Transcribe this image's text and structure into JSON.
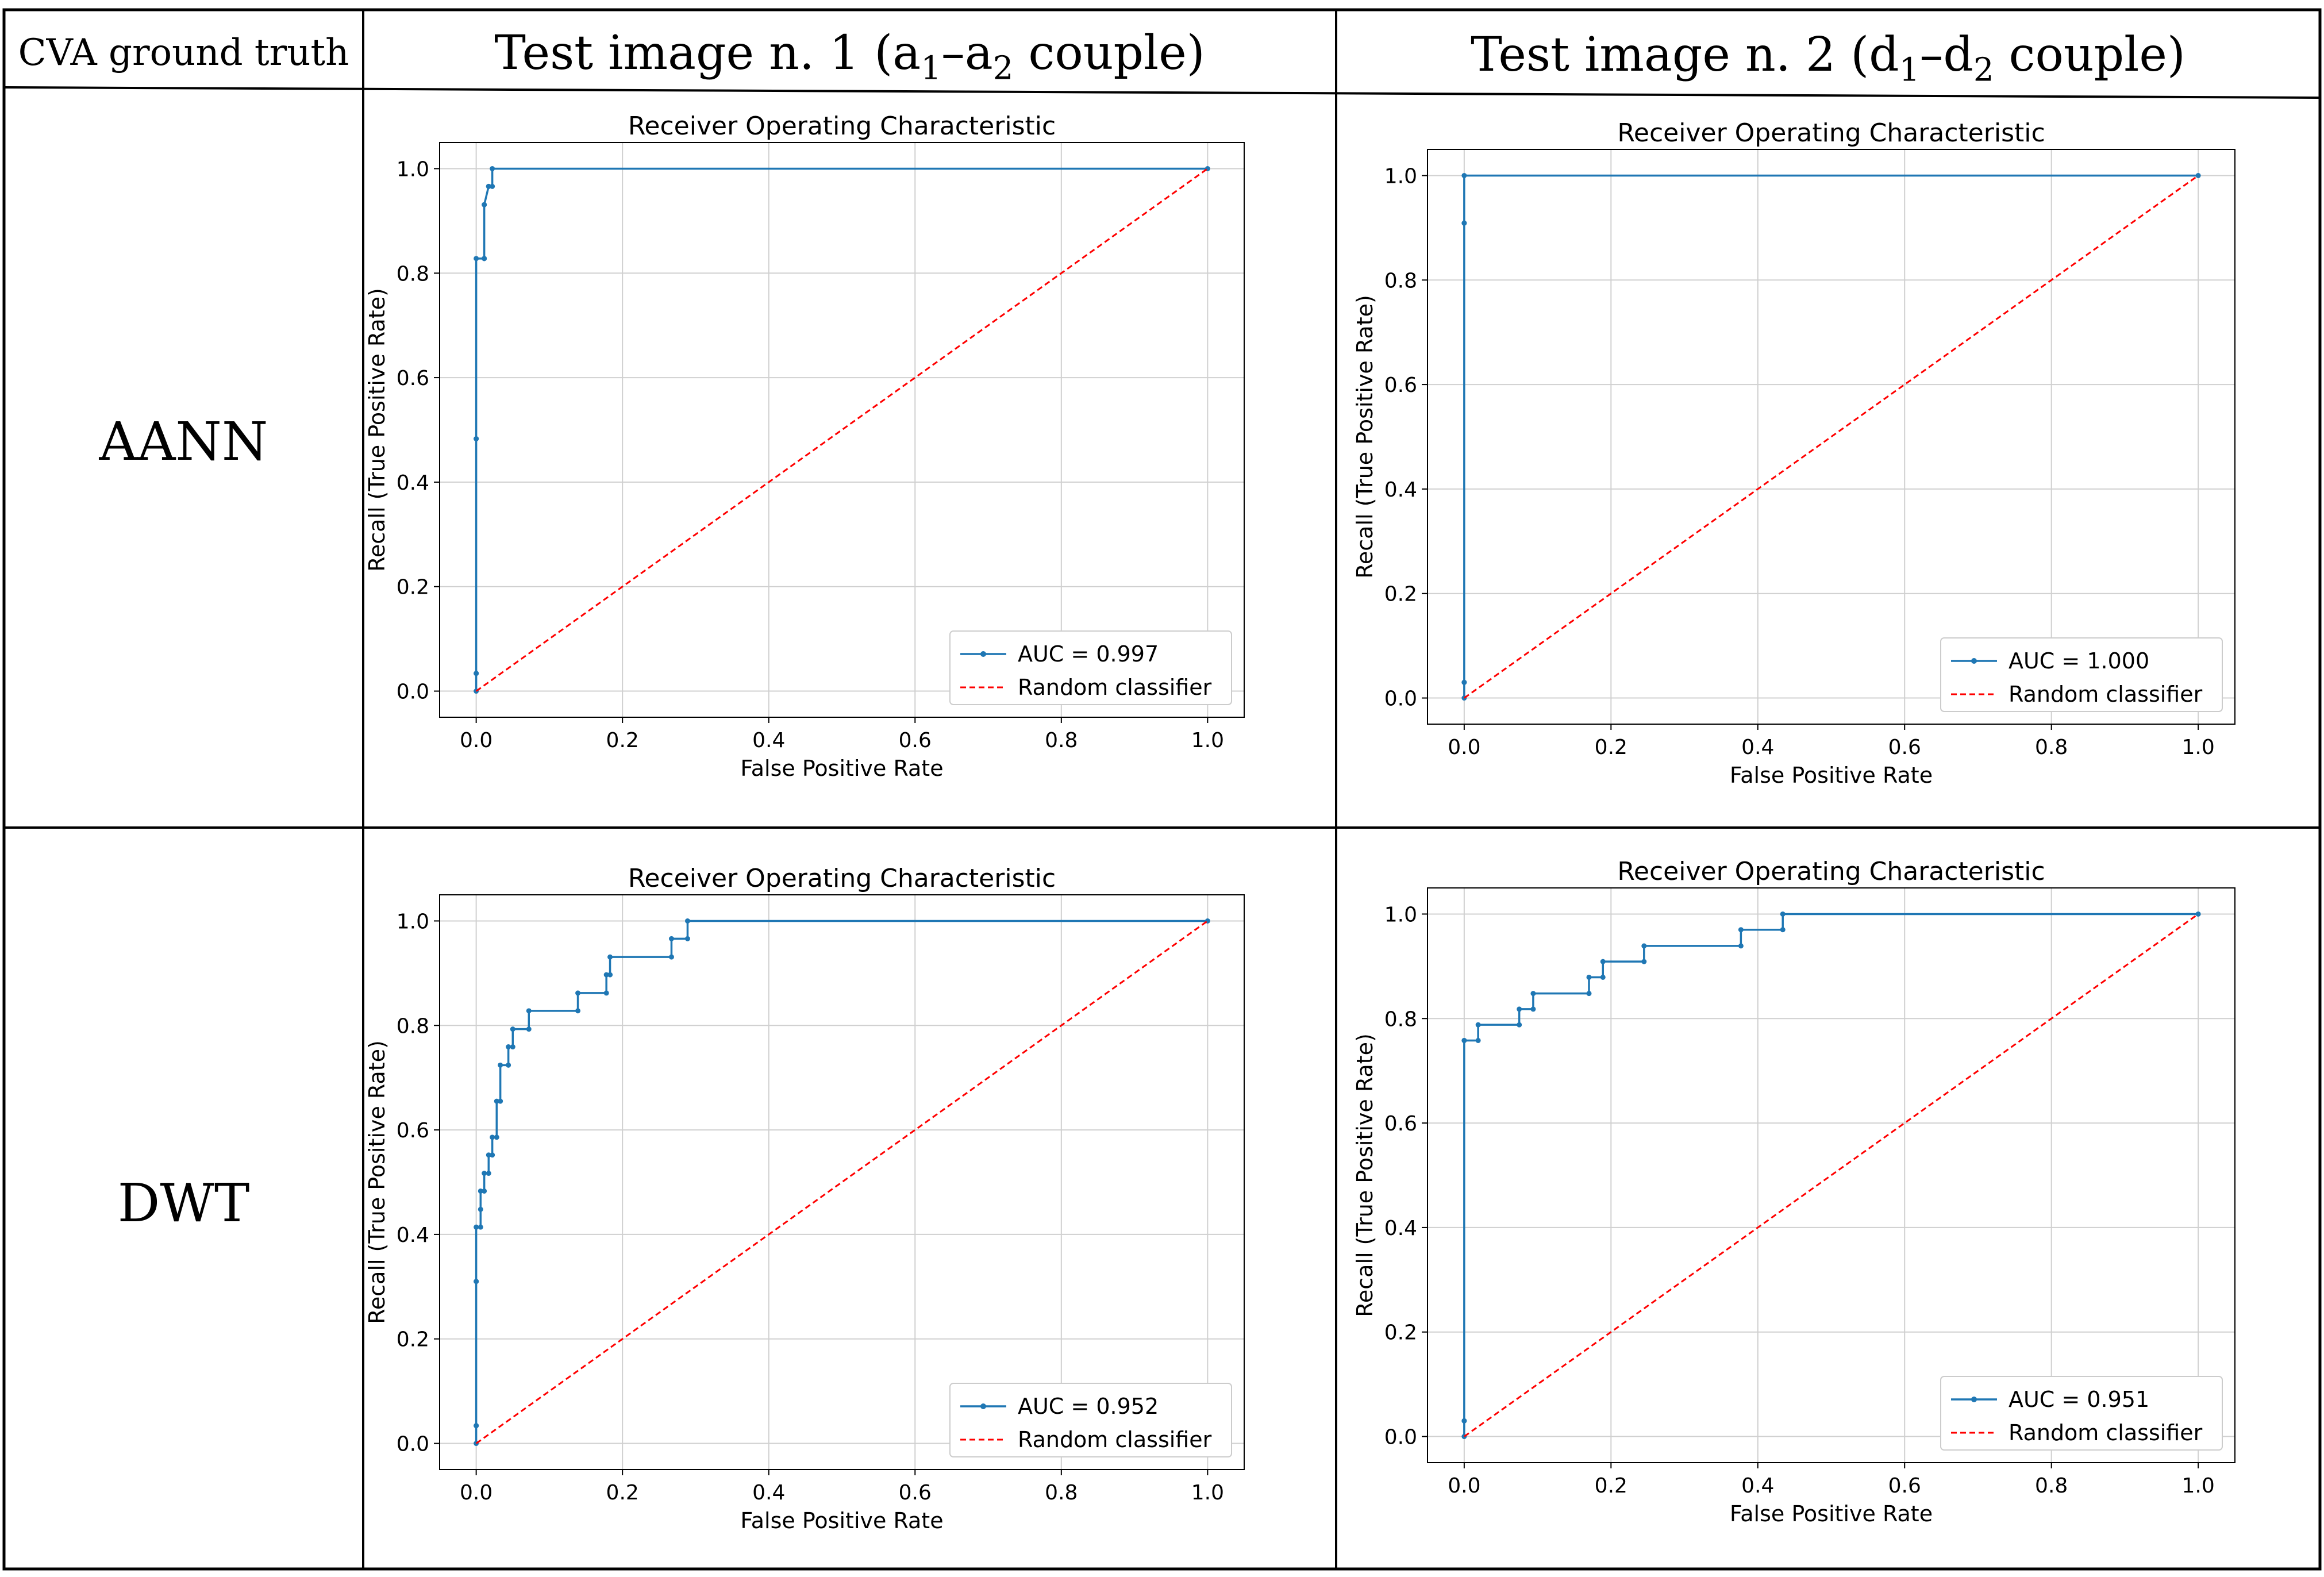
{
  "table": {
    "corner_label": "CVA ground truth",
    "col1_header": "Test image n. 1 (a",
    "col1_sub_a": "1",
    "col1_mid": "–a",
    "col1_sub_b": "2",
    "col1_tail": " couple)",
    "col2_header": "Test image n. 2 (d",
    "col2_sub_a": "1",
    "col2_mid": "–d",
    "col2_sub_b": "2",
    "col2_tail": " couple)",
    "row1_label": "AANN",
    "row2_label": "DWT"
  },
  "colors": {
    "roc_line": "#1f77b4",
    "diagonal": "#ff0000",
    "grid": "#d0d0d0",
    "border": "#000000"
  },
  "chart_data": [
    {
      "type": "line",
      "id": "aann-img1",
      "title": "Receiver Operating Characteristic",
      "xlabel": "False Positive Rate",
      "ylabel": "Recall (True Positive Rate)",
      "xlim": [
        -0.05,
        1.05
      ],
      "ylim": [
        -0.05,
        1.05
      ],
      "xticks": [
        0.0,
        0.2,
        0.4,
        0.6,
        0.8,
        1.0
      ],
      "yticks": [
        0.0,
        0.2,
        0.4,
        0.6,
        0.8,
        1.0
      ],
      "tick_labels": [
        "0.0",
        "0.2",
        "0.4",
        "0.6",
        "0.8",
        "1.0"
      ],
      "grid": true,
      "legend_position": "bottom-right",
      "series": [
        {
          "name": "AUC = 0.997",
          "style": "solid-markers",
          "x": [
            0.0,
            0.0,
            0.0,
            0.0,
            0.0,
            0.0,
            0.011,
            0.011,
            0.011,
            0.011,
            0.017,
            0.017,
            0.022,
            0.022,
            1.0
          ],
          "y": [
            0.0,
            0.034,
            0.034,
            0.483,
            0.483,
            0.828,
            0.828,
            0.828,
            0.931,
            0.931,
            0.966,
            0.966,
            0.966,
            1.0,
            1.0
          ]
        },
        {
          "name": "Random classifier",
          "style": "dashed",
          "x": [
            0.0,
            1.0
          ],
          "y": [
            0.0,
            1.0
          ]
        }
      ]
    },
    {
      "type": "line",
      "id": "aann-img2",
      "title": "Receiver Operating Characteristic",
      "xlabel": "False Positive Rate",
      "ylabel": "Recall (True Positive Rate)",
      "xlim": [
        -0.05,
        1.05
      ],
      "ylim": [
        -0.05,
        1.05
      ],
      "xticks": [
        0.0,
        0.2,
        0.4,
        0.6,
        0.8,
        1.0
      ],
      "yticks": [
        0.0,
        0.2,
        0.4,
        0.6,
        0.8,
        1.0
      ],
      "tick_labels": [
        "0.0",
        "0.2",
        "0.4",
        "0.6",
        "0.8",
        "1.0"
      ],
      "grid": true,
      "legend_position": "bottom-right",
      "series": [
        {
          "name": "AUC = 1.000",
          "style": "solid-markers",
          "x": [
            0.0,
            0.0,
            0.0,
            0.0,
            0.0,
            0.0,
            1.0
          ],
          "y": [
            0.0,
            0.03,
            0.03,
            0.909,
            0.909,
            1.0,
            1.0
          ]
        },
        {
          "name": "Random classifier",
          "style": "dashed",
          "x": [
            0.0,
            1.0
          ],
          "y": [
            0.0,
            1.0
          ]
        }
      ]
    },
    {
      "type": "line",
      "id": "dwt-img1",
      "title": "Receiver Operating Characteristic",
      "xlabel": "False Positive Rate",
      "ylabel": "Recall (True Positive Rate)",
      "xlim": [
        -0.05,
        1.05
      ],
      "ylim": [
        -0.05,
        1.05
      ],
      "xticks": [
        0.0,
        0.2,
        0.4,
        0.6,
        0.8,
        1.0
      ],
      "yticks": [
        0.0,
        0.2,
        0.4,
        0.6,
        0.8,
        1.0
      ],
      "tick_labels": [
        "0.0",
        "0.2",
        "0.4",
        "0.6",
        "0.8",
        "1.0"
      ],
      "grid": true,
      "legend_position": "bottom-right",
      "series": [
        {
          "name": "AUC = 0.952",
          "style": "solid-markers",
          "x": [
            0.0,
            0.0,
            0.0,
            0.0,
            0.0,
            0.0,
            0.006,
            0.006,
            0.006,
            0.011,
            0.011,
            0.017,
            0.017,
            0.022,
            0.022,
            0.028,
            0.028,
            0.033,
            0.033,
            0.044,
            0.044,
            0.05,
            0.05,
            0.072,
            0.072,
            0.139,
            0.139,
            0.178,
            0.178,
            0.183,
            0.183,
            0.267,
            0.267,
            0.289,
            0.289,
            1.0
          ],
          "y": [
            0.0,
            0.034,
            0.034,
            0.31,
            0.31,
            0.414,
            0.414,
            0.448,
            0.483,
            0.483,
            0.517,
            0.517,
            0.552,
            0.552,
            0.586,
            0.586,
            0.655,
            0.655,
            0.724,
            0.724,
            0.759,
            0.759,
            0.793,
            0.793,
            0.828,
            0.828,
            0.862,
            0.862,
            0.897,
            0.897,
            0.931,
            0.931,
            0.966,
            0.966,
            1.0,
            1.0
          ]
        },
        {
          "name": "Random classifier",
          "style": "dashed",
          "x": [
            0.0,
            1.0
          ],
          "y": [
            0.0,
            1.0
          ]
        }
      ]
    },
    {
      "type": "line",
      "id": "dwt-img2",
      "title": "Receiver Operating Characteristic",
      "xlabel": "False Positive Rate",
      "ylabel": "Recall (True Positive Rate)",
      "xlim": [
        -0.05,
        1.05
      ],
      "ylim": [
        -0.05,
        1.05
      ],
      "xticks": [
        0.0,
        0.2,
        0.4,
        0.6,
        0.8,
        1.0
      ],
      "yticks": [
        0.0,
        0.2,
        0.4,
        0.6,
        0.8,
        1.0
      ],
      "tick_labels": [
        "0.0",
        "0.2",
        "0.4",
        "0.6",
        "0.8",
        "1.0"
      ],
      "grid": true,
      "legend_position": "bottom-right",
      "series": [
        {
          "name": "AUC = 0.951",
          "style": "solid-markers",
          "x": [
            0.0,
            0.0,
            0.0,
            0.0,
            0.0,
            0.019,
            0.019,
            0.075,
            0.075,
            0.094,
            0.094,
            0.17,
            0.17,
            0.189,
            0.189,
            0.245,
            0.245,
            0.377,
            0.377,
            0.434,
            0.434,
            1.0
          ],
          "y": [
            0.0,
            0.03,
            0.03,
            0.758,
            0.758,
            0.758,
            0.788,
            0.788,
            0.818,
            0.818,
            0.848,
            0.848,
            0.879,
            0.879,
            0.909,
            0.909,
            0.939,
            0.939,
            0.97,
            0.97,
            1.0,
            1.0
          ]
        },
        {
          "name": "Random classifier",
          "style": "dashed",
          "x": [
            0.0,
            1.0
          ],
          "y": [
            0.0,
            1.0
          ]
        }
      ]
    }
  ]
}
